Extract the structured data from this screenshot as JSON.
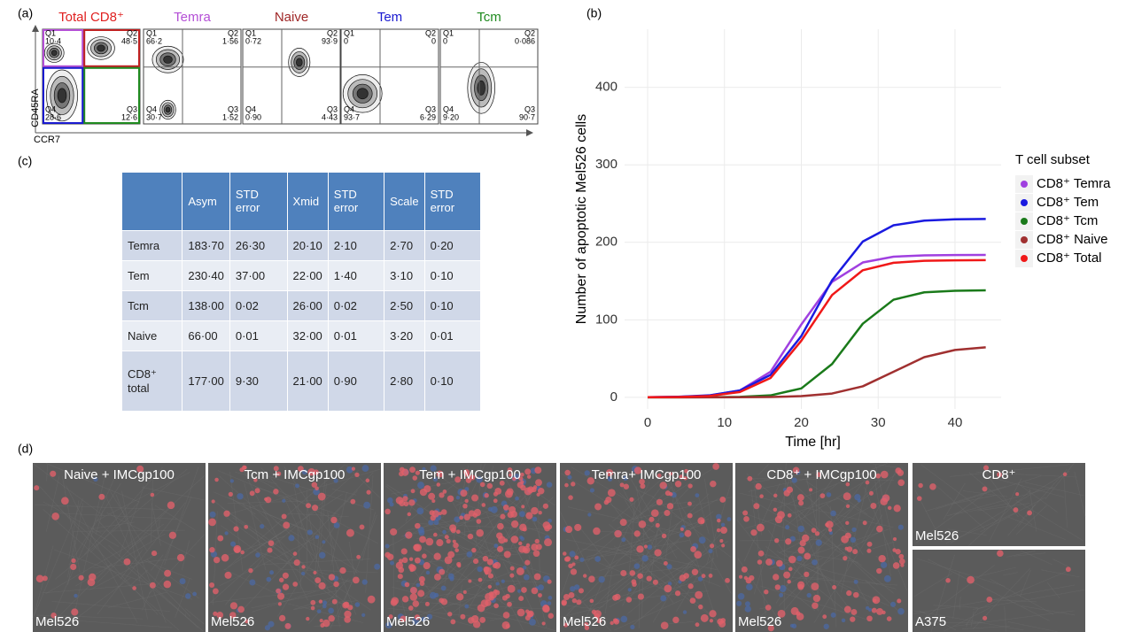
{
  "panel_labels": [
    "(a)",
    "(b)",
    "(c)",
    "(d)"
  ],
  "flow": {
    "y_axis": "CD45RA",
    "x_axis": "CCR7",
    "plots": [
      {
        "title": "Total CD8⁺",
        "color": "#e02020",
        "quadrants": [
          [
            "Q1",
            "10·4"
          ],
          [
            "Q2",
            "48·5"
          ],
          [
            "Q3",
            "12·6"
          ],
          [
            "Q4",
            "28·6"
          ]
        ]
      },
      {
        "title": "Temra",
        "color": "#b44fd6",
        "quadrants": [
          [
            "Q1",
            "66·2"
          ],
          [
            "Q2",
            "1·56"
          ],
          [
            "Q3",
            "1·52"
          ],
          [
            "Q4",
            "30·7"
          ]
        ]
      },
      {
        "title": "Naive",
        "color": "#a02828",
        "quadrants": [
          [
            "Q1",
            "0·72"
          ],
          [
            "Q2",
            "93·9"
          ],
          [
            "Q3",
            "4·43"
          ],
          [
            "Q4",
            "0·90"
          ]
        ]
      },
      {
        "title": "Tem",
        "color": "#1a1ad0",
        "quadrants": [
          [
            "Q1",
            "0"
          ],
          [
            "Q2",
            "0"
          ],
          [
            "Q3",
            "6·29"
          ],
          [
            "Q4",
            "93·7"
          ]
        ]
      },
      {
        "title": "Tcm",
        "color": "#1f8a1f",
        "quadrants": [
          [
            "Q1",
            "0"
          ],
          [
            "Q2",
            "0·086"
          ],
          [
            "Q3",
            "90·7"
          ],
          [
            "Q4",
            "9·20"
          ]
        ]
      }
    ]
  },
  "chart_data": {
    "type": "line",
    "x_label": "Time [hr]",
    "y_label": "Number of apoptotic Mel526 cells",
    "legend_title": "T cell subset",
    "legend": "right",
    "grid": true,
    "x": [
      0,
      4,
      8,
      12,
      16,
      20,
      24,
      28,
      32,
      36,
      40,
      44
    ],
    "xlim": [
      -3,
      46
    ],
    "xticks": [
      0,
      10,
      20,
      30,
      40
    ],
    "ylim": [
      -15,
      475
    ],
    "yticks": [
      0,
      100,
      200,
      300,
      400
    ],
    "series": [
      {
        "name": "CD8⁺ Temra",
        "color": "#a040e0",
        "values": [
          0.1,
          0.5,
          2.1,
          8.7,
          33,
          94,
          149,
          174,
          181.5,
          183.2,
          183.6,
          183.7
        ]
      },
      {
        "name": "CD8⁺ Tem",
        "color": "#1a1ae0",
        "values": [
          0.2,
          0.7,
          2.5,
          8.8,
          29,
          79,
          151,
          201,
          222,
          228,
          229.7,
          230.2
        ]
      },
      {
        "name": "CD8⁺ Tcm",
        "color": "#1a7a1a",
        "values": [
          0,
          0.02,
          0.1,
          0.5,
          2.5,
          11.5,
          43,
          95,
          126,
          135.5,
          137.5,
          138
        ]
      },
      {
        "name": "CD8⁺ Naive",
        "color": "#a03030",
        "values": [
          0,
          0.01,
          0.04,
          0.13,
          0.44,
          1.5,
          4.9,
          14.2,
          33,
          51.8,
          61.1,
          64.5
        ]
      },
      {
        "name": "CD8⁺ Total",
        "color": "#f01818",
        "values": [
          0.1,
          0.4,
          1.7,
          6.8,
          25,
          73,
          132,
          164,
          173.6,
          176.2,
          176.8,
          177
        ]
      }
    ]
  },
  "table": {
    "header": [
      "Asym",
      "STD error",
      "Xmid",
      "STD error",
      "Scale",
      "STD error"
    ],
    "rows": [
      [
        "Temra",
        "183·70",
        "26·30",
        "20·10",
        "2·10",
        "2·70",
        "0·20"
      ],
      [
        "Tem",
        "230·40",
        "37·00",
        "22·00",
        "1·40",
        "3·10",
        "0·10"
      ],
      [
        "Tcm",
        "138·00",
        "0·02",
        "26·00",
        "0·02",
        "2·50",
        "0·10"
      ],
      [
        "Naive",
        "66·00",
        "0·01",
        "32·00",
        "0·01",
        "3·20",
        "0·01"
      ],
      [
        "CD8⁺ total",
        "177·00",
        "9·30",
        "21·00",
        "0·90",
        "2·80",
        "0·10"
      ]
    ]
  },
  "panel_d": {
    "tiles": [
      {
        "title": "Naive + IMCgp100",
        "cell_line": "Mel526"
      },
      {
        "title": "Tcm + IMCgp100",
        "cell_line": "Mel526"
      },
      {
        "title": "Tem + IMCgp100",
        "cell_line": "Mel526"
      },
      {
        "title": "Temra+ IMCgp100",
        "cell_line": "Mel526"
      },
      {
        "title": "CD8⁺ + IMCgp100",
        "cell_line": "Mel526"
      },
      {
        "title": "CD8⁺",
        "cell_line": "Mel526"
      },
      {
        "cell_line": "A375"
      }
    ]
  }
}
